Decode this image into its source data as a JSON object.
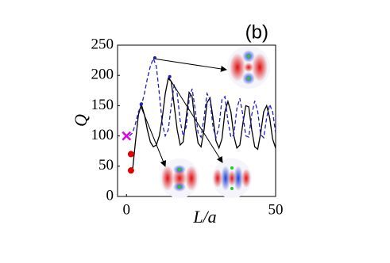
{
  "chart_data": {
    "type": "line",
    "annotation": "(b)",
    "xlabel": "L/a",
    "ylabel": "Q",
    "xlim": [
      -3,
      50
    ],
    "xticks": [
      0,
      50
    ],
    "ylim": [
      0,
      250
    ],
    "yticks": [
      0,
      50,
      100,
      150,
      200,
      250
    ],
    "series": [
      {
        "color": "#000000",
        "style": "solid",
        "x": [
          2,
          3,
          4,
          5,
          6,
          7,
          8,
          9,
          10,
          11,
          12,
          13,
          14,
          15,
          16,
          17,
          18,
          19,
          20,
          21,
          22,
          23,
          24,
          25,
          26,
          27,
          28,
          29,
          30,
          31,
          32,
          33,
          34,
          35,
          36,
          37,
          38,
          39,
          40,
          41,
          42,
          43,
          44,
          45,
          46,
          47,
          48,
          49,
          50
        ],
        "values": [
          42,
          90,
          135,
          152,
          135,
          110,
          90,
          82,
          85,
          100,
          130,
          170,
          195,
          190,
          150,
          110,
          85,
          90,
          130,
          172,
          165,
          120,
          88,
          82,
          110,
          155,
          163,
          130,
          92,
          80,
          95,
          140,
          157,
          140,
          100,
          80,
          85,
          120,
          150,
          148,
          110,
          82,
          78,
          105,
          140,
          150,
          130,
          95,
          80
        ]
      },
      {
        "color": "#1f1fbf",
        "style": "dashed",
        "x": [
          1,
          2,
          3,
          4,
          5,
          6,
          7,
          8,
          9,
          10,
          11,
          12,
          13,
          14,
          15,
          16,
          17,
          18,
          19,
          20,
          21,
          22,
          23,
          24,
          25,
          26,
          27,
          28,
          29,
          30,
          31,
          32,
          33,
          34,
          35,
          36,
          37,
          38,
          39,
          40,
          41,
          42,
          43,
          44,
          45,
          46,
          47,
          48,
          49,
          50
        ],
        "values": [
          100,
          105,
          120,
          140,
          150,
          170,
          195,
          215,
          228,
          215,
          170,
          120,
          100,
          110,
          150,
          185,
          170,
          125,
          100,
          115,
          160,
          178,
          145,
          105,
          98,
          130,
          170,
          160,
          115,
          97,
          115,
          160,
          165,
          125,
          98,
          102,
          145,
          162,
          135,
          100,
          98,
          135,
          158,
          140,
          102,
          97,
          130,
          152,
          140,
          105
        ]
      },
      {
        "color": "#e00000",
        "style": "dots",
        "x": [
          1.5,
          1.5
        ],
        "values": [
          43,
          70
        ]
      },
      {
        "color": "#e000e0",
        "style": "cross",
        "x": [
          0
        ],
        "values": [
          100
        ]
      },
      {
        "color": "#1f1fbf",
        "style": "small-dots",
        "x": [
          5,
          9.5,
          14.5
        ],
        "values": [
          153,
          229,
          198
        ]
      }
    ]
  }
}
